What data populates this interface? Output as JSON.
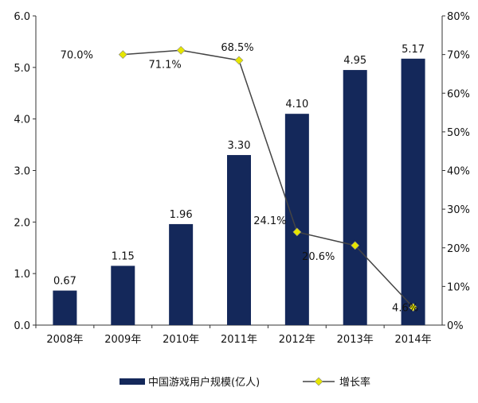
{
  "chart_data": {
    "type": "bar",
    "categories": [
      "2008年",
      "2009年",
      "2010年",
      "2011年",
      "2012年",
      "2013年",
      "2014年"
    ],
    "series": [
      {
        "name": "中国游戏用户规模(亿人)",
        "type": "bar",
        "axis": "left",
        "values": [
          0.67,
          1.15,
          1.96,
          3.3,
          4.1,
          4.95,
          5.17
        ],
        "labels": [
          "0.67",
          "1.15",
          "1.96",
          "3.30",
          "4.10",
          "4.95",
          "5.17"
        ],
        "color": "#14285a"
      },
      {
        "name": "增长率",
        "type": "line",
        "axis": "right",
        "values": [
          null,
          70.0,
          71.1,
          68.5,
          24.1,
          20.6,
          4.6
        ],
        "labels": [
          "",
          "70.0%",
          "71.1%",
          "68.5%",
          "24.1%",
          "20.6%",
          "4.6%"
        ],
        "color": "#e6e600"
      }
    ],
    "ylim": [
      0,
      6
    ],
    "yticks": [
      "0.0",
      "1.0",
      "2.0",
      "3.0",
      "4.0",
      "5.0",
      "6.0"
    ],
    "y2lim": [
      0,
      80
    ],
    "y2ticks": [
      "0%",
      "10%",
      "20%",
      "30%",
      "40%",
      "50%",
      "60%",
      "70%",
      "80%"
    ],
    "title": "",
    "xlabel": "",
    "ylabel": "",
    "grid": false,
    "legend": "bottom"
  }
}
